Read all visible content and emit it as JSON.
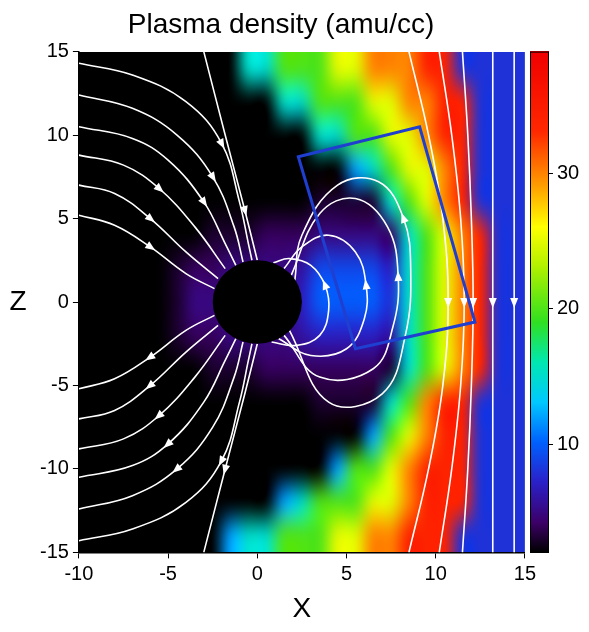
{
  "chart_data": {
    "type": "heatmap",
    "title": "Plasma density (amu/cc)",
    "x_label": "X",
    "y_label": "Z",
    "xlim": [
      -10,
      15
    ],
    "xticks": [
      -10,
      -5,
      0,
      5,
      10,
      15
    ],
    "ylim": [
      -15,
      15
    ],
    "yticks": [
      -15,
      -10,
      -5,
      0,
      5,
      10,
      15
    ],
    "grid": false,
    "colorbar": {
      "lim": [
        2,
        39
      ],
      "ticks": [
        10,
        20,
        30
      ]
    },
    "density": {
      "x": [
        -9.5,
        -8.5,
        -7.5,
        -6.5,
        -5.5,
        -4.5,
        -3.5,
        -2.5,
        -1.5,
        -0.5,
        0.5,
        1.5,
        2.5,
        3.5,
        4.5,
        5.5,
        6.5,
        7.5,
        8.5,
        9.5,
        10.5,
        11.5,
        12.5,
        13.5,
        14.5
      ],
      "z": [
        14,
        12,
        10,
        8,
        6,
        4,
        2,
        0,
        -2,
        -4,
        -6,
        -8,
        -10,
        -12,
        -14
      ],
      "values": [
        [
          2,
          2,
          2,
          2,
          2,
          2,
          2,
          2,
          2,
          15,
          15,
          20,
          20,
          20,
          25,
          25,
          30,
          30,
          30,
          34,
          34,
          8,
          8,
          8,
          8
        ],
        [
          2,
          2,
          2,
          2,
          2,
          2,
          2,
          2,
          2,
          2,
          2,
          15,
          15,
          20,
          20,
          20,
          25,
          25,
          30,
          30,
          34,
          34,
          8,
          8,
          8
        ],
        [
          2,
          2,
          2,
          2,
          2,
          2,
          2,
          2,
          2,
          2,
          2,
          2,
          2,
          15,
          15,
          20,
          20,
          25,
          25,
          30,
          34,
          34,
          8,
          8,
          8
        ],
        [
          2,
          2,
          2,
          2,
          2,
          2,
          2,
          2,
          2,
          2,
          2,
          2,
          2,
          2,
          2,
          12,
          15,
          20,
          25,
          25,
          30,
          34,
          8,
          8,
          8
        ],
        [
          2,
          2,
          2,
          2,
          2,
          2,
          2,
          2,
          2,
          2,
          2,
          2,
          2,
          3,
          3,
          3,
          3,
          15,
          20,
          25,
          30,
          34,
          8,
          8,
          8
        ],
        [
          2,
          2,
          2,
          2,
          2,
          2,
          2,
          3,
          3,
          3,
          4,
          4,
          4,
          5,
          5,
          5,
          5,
          4,
          15,
          20,
          25,
          30,
          34,
          8,
          8
        ],
        [
          2,
          2,
          2,
          2,
          2,
          3,
          4,
          4,
          5,
          5,
          5,
          5,
          6,
          9,
          9,
          9,
          9,
          7,
          15,
          20,
          25,
          30,
          34,
          8,
          8
        ],
        [
          2,
          2,
          2,
          2,
          2,
          3,
          5,
          5,
          5,
          5,
          5,
          5,
          7,
          10,
          10,
          10,
          10,
          8,
          15,
          20,
          25,
          30,
          34,
          8,
          8
        ],
        [
          2,
          2,
          2,
          2,
          2,
          3,
          4,
          4,
          5,
          5,
          5,
          5,
          6,
          7,
          7,
          7,
          7,
          6,
          15,
          20,
          25,
          30,
          34,
          8,
          8
        ],
        [
          2,
          2,
          2,
          2,
          2,
          2,
          2,
          3,
          3,
          3,
          4,
          4,
          4,
          4,
          4,
          4,
          4,
          3,
          15,
          20,
          25,
          30,
          34,
          8,
          8
        ],
        [
          2,
          2,
          2,
          2,
          2,
          2,
          2,
          2,
          2,
          2,
          2,
          2,
          2,
          3,
          3,
          3,
          3,
          15,
          20,
          30,
          34,
          34,
          8,
          8,
          8
        ],
        [
          2,
          2,
          2,
          2,
          2,
          2,
          2,
          2,
          2,
          2,
          2,
          2,
          2,
          2,
          2,
          2,
          12,
          20,
          25,
          30,
          34,
          34,
          8,
          8,
          8
        ],
        [
          2,
          2,
          2,
          2,
          2,
          2,
          2,
          2,
          2,
          2,
          2,
          2,
          2,
          2,
          12,
          20,
          20,
          25,
          30,
          34,
          34,
          34,
          8,
          8,
          8
        ],
        [
          2,
          2,
          2,
          2,
          2,
          2,
          2,
          2,
          2,
          2,
          2,
          12,
          15,
          20,
          20,
          20,
          25,
          25,
          30,
          34,
          34,
          34,
          8,
          8,
          8
        ],
        [
          2,
          2,
          2,
          2,
          2,
          2,
          2,
          2,
          12,
          15,
          15,
          20,
          20,
          20,
          25,
          25,
          30,
          30,
          34,
          34,
          34,
          8,
          8,
          8,
          8
        ]
      ]
    },
    "planet": {
      "color": "#000000",
      "center": [
        0,
        0
      ],
      "radius": 2.5
    },
    "box": {
      "color": "#1f3fd0",
      "corners": [
        [
          2.3,
          8.7
        ],
        [
          9.1,
          10.5
        ],
        [
          12.2,
          -1.2
        ],
        [
          5.5,
          -2.8
        ]
      ]
    },
    "field_lines": {
      "color": "#ffffff",
      "lines": [
        [
          [
            -10,
            14.3
          ],
          [
            -7,
            13.6
          ],
          [
            -4,
            12
          ],
          [
            -2,
            9.5
          ],
          [
            -1,
            6
          ],
          [
            -0.5,
            3.5
          ],
          [
            -0.3,
            2.5
          ]
        ],
        [
          [
            -10,
            12.4
          ],
          [
            -7,
            11.6
          ],
          [
            -4.5,
            10
          ],
          [
            -2.5,
            7.5
          ],
          [
            -1.3,
            4.5
          ],
          [
            -0.8,
            2.4
          ]
        ],
        [
          [
            -10,
            10.5
          ],
          [
            -7,
            9.8
          ],
          [
            -5,
            8.5
          ],
          [
            -3,
            6
          ],
          [
            -1.8,
            3.5
          ],
          [
            -1.2,
            2.2
          ]
        ],
        [
          [
            -10,
            8.8
          ],
          [
            -7.5,
            8.2
          ],
          [
            -5.5,
            6.8
          ],
          [
            -3.5,
            4.5
          ],
          [
            -1.8,
            2
          ]
        ],
        [
          [
            -10,
            7
          ],
          [
            -8,
            6.5
          ],
          [
            -6,
            5
          ],
          [
            -4,
            3
          ],
          [
            -2.2,
            1.4
          ]
        ],
        [
          [
            -10,
            5.2
          ],
          [
            -8,
            4.6
          ],
          [
            -6,
            3.3
          ],
          [
            -4,
            1.7
          ],
          [
            -2.4,
            0.8
          ]
        ],
        [
          [
            -3,
            15
          ],
          [
            -1.8,
            10
          ],
          [
            -0.7,
            5.5
          ],
          [
            0,
            2.5
          ]
        ],
        [
          [
            -0.3,
            -2.5
          ],
          [
            -0.5,
            -3.5
          ],
          [
            -1,
            -6
          ],
          [
            -2,
            -9.5
          ],
          [
            -4,
            -12
          ],
          [
            -7,
            -13.6
          ],
          [
            -10,
            -14.3
          ]
        ],
        [
          [
            -0.8,
            -2.4
          ],
          [
            -1.3,
            -4.5
          ],
          [
            -2.5,
            -7.5
          ],
          [
            -4.5,
            -10
          ],
          [
            -7,
            -11.6
          ],
          [
            -10,
            -12.4
          ]
        ],
        [
          [
            -1.2,
            -2.2
          ],
          [
            -1.8,
            -3.5
          ],
          [
            -3,
            -6
          ],
          [
            -5,
            -8.5
          ],
          [
            -7,
            -9.8
          ],
          [
            -10,
            -10.5
          ]
        ],
        [
          [
            -1.8,
            -2
          ],
          [
            -3.5,
            -4.5
          ],
          [
            -5.5,
            -6.8
          ],
          [
            -7.5,
            -8.2
          ],
          [
            -10,
            -8.8
          ]
        ],
        [
          [
            -2.2,
            -1.4
          ],
          [
            -4,
            -3
          ],
          [
            -6,
            -5
          ],
          [
            -8,
            -6.5
          ],
          [
            -10,
            -7
          ]
        ],
        [
          [
            -2.4,
            -0.8
          ],
          [
            -4,
            -1.7
          ],
          [
            -6,
            -3.3
          ],
          [
            -8,
            -4.6
          ],
          [
            -10,
            -5.2
          ]
        ],
        [
          [
            0,
            -2.5
          ],
          [
            -0.7,
            -5.5
          ],
          [
            -1.8,
            -10
          ],
          [
            -3,
            -15
          ]
        ],
        [
          [
            0.8,
            -2.4
          ],
          [
            2.2,
            -2.6
          ],
          [
            3.5,
            -2
          ],
          [
            4,
            -0.5
          ],
          [
            3.8,
            1
          ],
          [
            3,
            2.2
          ],
          [
            1.8,
            2.6
          ],
          [
            0.9,
            2.35
          ]
        ],
        [
          [
            1.2,
            -2.2
          ],
          [
            3,
            -3.2
          ],
          [
            5,
            -2.8
          ],
          [
            6,
            -1
          ],
          [
            6.1,
            1
          ],
          [
            5.5,
            3
          ],
          [
            4,
            4
          ],
          [
            2.5,
            3.3
          ],
          [
            1.5,
            2
          ]
        ],
        [
          [
            1.5,
            -2
          ],
          [
            3.5,
            -4.5
          ],
          [
            6.5,
            -4
          ],
          [
            7.6,
            -1.5
          ],
          [
            7.9,
            1.5
          ],
          [
            7.3,
            4.5
          ],
          [
            5.5,
            6.2
          ],
          [
            3.5,
            5.3
          ],
          [
            1.9,
            1.6
          ]
        ],
        [
          [
            1.8,
            -1.7
          ],
          [
            4,
            -6
          ],
          [
            7,
            -5.5
          ],
          [
            8.3,
            -2
          ],
          [
            8.6,
            2
          ],
          [
            8.2,
            5
          ],
          [
            6.8,
            7.2
          ],
          [
            4.5,
            7
          ],
          [
            2.5,
            4
          ],
          [
            2.1,
            1.3
          ]
        ],
        [
          [
            8.5,
            15
          ],
          [
            9.6,
            10
          ],
          [
            10.4,
            5
          ],
          [
            10.7,
            0
          ],
          [
            10.4,
            -5
          ],
          [
            9.6,
            -10
          ],
          [
            8.5,
            -15
          ]
        ],
        [
          [
            10.2,
            15
          ],
          [
            10.9,
            10
          ],
          [
            11.4,
            5
          ],
          [
            11.6,
            0
          ],
          [
            11.4,
            -5
          ],
          [
            10.9,
            -10
          ],
          [
            10.2,
            -15
          ]
        ],
        [
          [
            11.5,
            15
          ],
          [
            11.8,
            10
          ],
          [
            12,
            5
          ],
          [
            12.1,
            0
          ],
          [
            12,
            -5
          ],
          [
            11.8,
            -10
          ],
          [
            11.5,
            -15
          ]
        ],
        [
          [
            13.2,
            15
          ],
          [
            13.2,
            -15
          ]
        ],
        [
          [
            14.4,
            15
          ],
          [
            14.4,
            -15
          ]
        ]
      ]
    }
  }
}
